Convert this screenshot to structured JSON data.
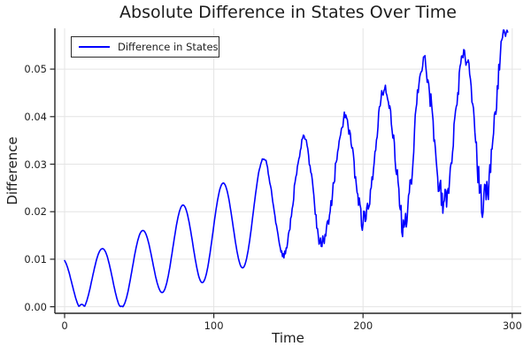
{
  "title": "Absolute Difference in States Over Time",
  "axes": {
    "xlabel": "Time",
    "ylabel": "Difference",
    "x_ticks": [
      {
        "value": 0,
        "label": "0"
      },
      {
        "value": 100,
        "label": "100"
      },
      {
        "value": 200,
        "label": "200"
      },
      {
        "value": 300,
        "label": "300"
      }
    ],
    "y_ticks": [
      {
        "value": 0.0,
        "label": "0.00"
      },
      {
        "value": 0.01,
        "label": "0.01"
      },
      {
        "value": 0.02,
        "label": "0.02"
      },
      {
        "value": 0.03,
        "label": "0.03"
      },
      {
        "value": 0.04,
        "label": "0.04"
      },
      {
        "value": 0.05,
        "label": "0.05"
      }
    ]
  },
  "legend": {
    "entries": [
      {
        "label": "Difference in States",
        "color": "#0000FF"
      }
    ]
  },
  "colors": {
    "line": "#0000FF",
    "grid": "#e4e4e4",
    "spine": "#262626",
    "text": "#1f1f1f",
    "background": "#ffffff",
    "legend_border": "#2b2b2b"
  },
  "chart_data": {
    "type": "line",
    "title": "Absolute Difference in States Over Time",
    "xlabel": "Time",
    "ylabel": "Difference",
    "xlim": [
      -8,
      307
    ],
    "ylim": [
      -0.0015,
      0.0585
    ],
    "x_tick_values": [
      0,
      100,
      200,
      300
    ],
    "y_tick_values": [
      0.0,
      0.01,
      0.02,
      0.03,
      0.04,
      0.05
    ],
    "grid": true,
    "legend_position": "top-left",
    "series": [
      {
        "name": "Difference in States",
        "color": "#0000FF",
        "description": "Absolute difference oscillating with period ~27 time units; baseline and amplitude grow over time; touches 0 near t=12 and t=36; becomes increasingly noisy after t~130; ends near t=297 around 0.053 after peaking ~0.057.",
        "start_point": [
          0,
          0.01
        ],
        "end_point": [
          297,
          0.053
        ],
        "peaks": [
          [
            25,
            0.012
          ],
          [
            52,
            0.016
          ],
          [
            78,
            0.021
          ],
          [
            106,
            0.026
          ],
          [
            133,
            0.031
          ],
          [
            160,
            0.036
          ],
          [
            187,
            0.04
          ],
          [
            214,
            0.045
          ],
          [
            241,
            0.052
          ],
          [
            268,
            0.054
          ],
          [
            295,
            0.057
          ]
        ],
        "troughs": [
          [
            12,
            0.0
          ],
          [
            36,
            0.0
          ],
          [
            63,
            0.003
          ],
          [
            90,
            0.005
          ],
          [
            118,
            0.008
          ],
          [
            146,
            0.0115
          ],
          [
            173,
            0.0135
          ],
          [
            201,
            0.0165
          ],
          [
            229,
            0.0185
          ],
          [
            257,
            0.0205
          ],
          [
            285,
            0.023
          ]
        ],
        "model": {
          "period": 27,
          "peak_phase_t": 25,
          "t_start": 0,
          "t_end": 297,
          "t_step": 0.5,
          "peak_envelope": [
            [
              0,
              0.0103
            ],
            [
              25,
              0.0122
            ],
            [
              52,
              0.016
            ],
            [
              78,
              0.0212
            ],
            [
              106,
              0.026
            ],
            [
              133,
              0.031
            ],
            [
              160,
              0.0358
            ],
            [
              187,
              0.0398
            ],
            [
              214,
              0.0453
            ],
            [
              241,
              0.0518
            ],
            [
              268,
              0.054
            ],
            [
              295,
              0.057
            ]
          ],
          "trough_envelope": [
            [
              12,
              -0.0005
            ],
            [
              36,
              -0.0004
            ],
            [
              63,
              0.0028
            ],
            [
              90,
              0.0048
            ],
            [
              118,
              0.008
            ],
            [
              146,
              0.0115
            ],
            [
              173,
              0.0135
            ],
            [
              201,
              0.0165
            ],
            [
              229,
              0.0185
            ],
            [
              257,
              0.0205
            ],
            [
              285,
              0.023
            ],
            [
              297,
              0.0245
            ]
          ],
          "noise": {
            "seed": 20240613,
            "start_t": 130,
            "amp_keypoints": [
              [
                130,
                0.0004
              ],
              [
                160,
                0.0009
              ],
              [
                200,
                0.0015
              ],
              [
                240,
                0.002
              ],
              [
                297,
                0.0026
              ]
            ]
          }
        }
      }
    ]
  }
}
